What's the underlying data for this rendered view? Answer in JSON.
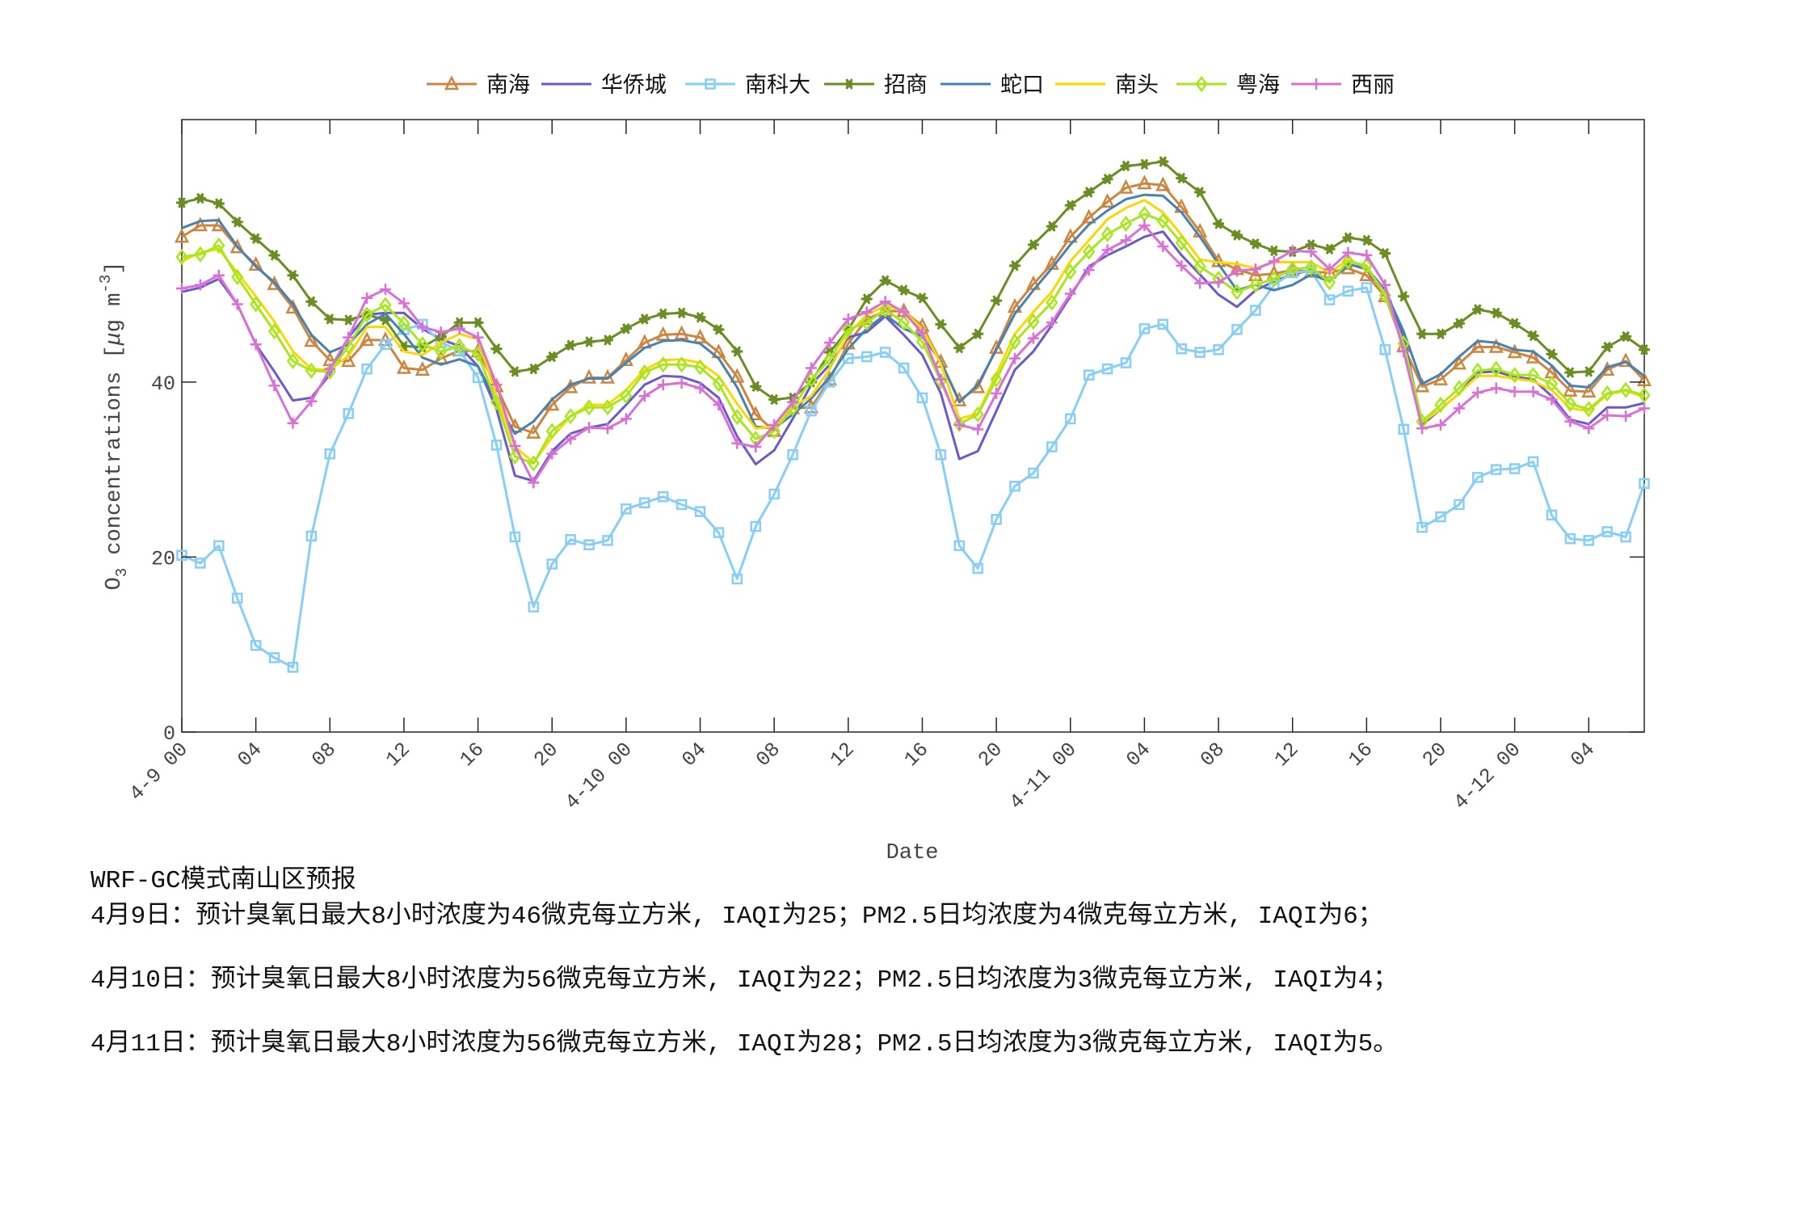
{
  "chart_data": {
    "type": "line",
    "xlabel": "Date",
    "ylabel": {
      "base": "O",
      "sub": "3",
      "mid": " concentrations [",
      "mu": "μ",
      "unit": "g m",
      "sup": "-3",
      "end": "]"
    },
    "ylim": [
      0,
      70
    ],
    "yticks": [
      0,
      20,
      40
    ],
    "ytick_labels": [
      "0",
      "20",
      "40"
    ],
    "xlim_hours": [
      0,
      79
    ],
    "xtick_hours": [
      0,
      4,
      8,
      12,
      16,
      20,
      24,
      28,
      32,
      36,
      40,
      44,
      48,
      52,
      56,
      60,
      64,
      68,
      72,
      76
    ],
    "xtick_labels": [
      "4-9 00",
      "04",
      "08",
      "12",
      "16",
      "20",
      "4-10 00",
      "04",
      "08",
      "12",
      "16",
      "20",
      "4-11 00",
      "04",
      "08",
      "12",
      "16",
      "20",
      "4-12 00",
      "04"
    ],
    "x_start": "4-9 00",
    "x_step": "1 hour",
    "grid": false,
    "legend_position": "top",
    "series": [
      {
        "name": "南海",
        "color": "#CD853F",
        "marker": "triangle",
        "values": [
          56.6,
          57.9,
          57.9,
          55.4,
          53.4,
          51.2,
          48.5,
          44.7,
          42.5,
          42.4,
          44.8,
          44.8,
          41.6,
          41.4,
          42.7,
          43.6,
          43.5,
          39.5,
          34.9,
          34.2,
          37.4,
          39.4,
          40.5,
          40.5,
          42.5,
          44.5,
          45.4,
          45.5,
          45.1,
          43.4,
          40.6,
          36.3,
          34.4,
          37.0,
          37.1,
          40.3,
          44.4,
          47.2,
          48.1,
          48.1,
          46.4,
          42.3,
          37.9,
          39.4,
          43.9,
          48.6,
          51.2,
          53.5,
          56.6,
          58.8,
          60.6,
          62.2,
          62.7,
          62.5,
          60.0,
          57.2,
          53.8,
          52.9,
          52.2,
          52.4,
          52.8,
          52.6,
          52.5,
          53.0,
          52.2,
          49.8,
          44.1,
          39.5,
          40.3,
          42.1,
          44.0,
          44.0,
          43.4,
          42.8,
          41.1,
          39.0,
          38.9,
          41.4,
          42.4,
          40.2
        ]
      },
      {
        "name": "华侨城",
        "color": "#6A5ACD",
        "marker": "none",
        "values": [
          50.3,
          50.8,
          51.8,
          48.9,
          44.3,
          41.2,
          37.9,
          38.2,
          40.9,
          45.1,
          47.7,
          47.9,
          47.9,
          46.1,
          44.9,
          44.1,
          41.8,
          36.9,
          29.3,
          28.7,
          32.1,
          34.1,
          34.8,
          35.2,
          37.4,
          39.7,
          40.7,
          40.6,
          39.9,
          38.2,
          33.8,
          30.6,
          32.2,
          35.8,
          39.7,
          42.0,
          45.1,
          45.7,
          47.5,
          45.4,
          43.1,
          38.7,
          31.2,
          32.1,
          36.7,
          41.4,
          43.5,
          46.5,
          49.8,
          53.2,
          54.5,
          55.5,
          56.6,
          57.2,
          54.5,
          52.3,
          50.0,
          48.6,
          50.5,
          51.5,
          52.3,
          52.8,
          51.5,
          53.5,
          52.9,
          50.1,
          45.2,
          35.1,
          36.9,
          38.7,
          41.1,
          41.2,
          40.6,
          40.3,
          38.4,
          35.7,
          35.2,
          37.1,
          37.1,
          37.6
        ]
      },
      {
        "name": "南科大",
        "color": "#87CEFA",
        "marker": "square",
        "values": [
          20.2,
          19.3,
          21.3,
          15.3,
          9.9,
          8.5,
          7.4,
          22.4,
          31.8,
          36.4,
          41.5,
          44.3,
          46.0,
          46.6,
          44.5,
          43.6,
          40.5,
          32.8,
          22.3,
          14.3,
          19.2,
          22.0,
          21.4,
          21.9,
          25.5,
          26.2,
          26.9,
          26.0,
          25.2,
          22.8,
          17.5,
          23.5,
          27.2,
          31.7,
          36.7,
          40.0,
          42.7,
          42.9,
          43.4,
          41.6,
          38.2,
          31.7,
          21.3,
          18.7,
          24.3,
          28.1,
          29.6,
          32.6,
          35.8,
          40.8,
          41.5,
          42.2,
          46.1,
          46.6,
          43.8,
          43.4,
          43.7,
          46.0,
          48.2,
          51.1,
          52.5,
          52.7,
          49.4,
          50.4,
          50.8,
          43.7,
          34.6,
          23.4,
          24.6,
          26.0,
          29.1,
          30.0,
          30.1,
          30.9,
          24.8,
          22.1,
          21.9,
          22.9,
          22.3,
          28.4
        ]
      },
      {
        "name": "招商",
        "color": "#6B8E23",
        "marker": "hexagram",
        "values": [
          60.5,
          61.0,
          60.4,
          58.3,
          56.4,
          54.5,
          52.2,
          49.2,
          47.2,
          47.1,
          47.7,
          47.1,
          44.1,
          44.0,
          45.2,
          46.8,
          46.8,
          43.8,
          41.2,
          41.5,
          42.9,
          44.2,
          44.6,
          44.8,
          46.1,
          47.2,
          47.8,
          47.9,
          47.4,
          46.0,
          43.5,
          39.5,
          38.0,
          38.2,
          40.0,
          43.4,
          46.0,
          49.5,
          51.6,
          50.5,
          49.6,
          46.6,
          43.9,
          45.5,
          49.3,
          53.3,
          55.7,
          57.8,
          60.2,
          61.7,
          63.2,
          64.7,
          64.9,
          65.2,
          63.3,
          61.7,
          58.1,
          56.8,
          55.8,
          55.0,
          54.9,
          55.7,
          55.2,
          56.5,
          56.2,
          54.7,
          49.8,
          45.5,
          45.5,
          46.7,
          48.3,
          47.9,
          46.7,
          45.3,
          43.2,
          41.1,
          41.2,
          44.0,
          45.2,
          43.7
        ]
      },
      {
        "name": "蛇口",
        "color": "#4682B4",
        "marker": "none",
        "values": [
          57.6,
          58.4,
          58.5,
          55.5,
          53.2,
          51.4,
          48.9,
          45.4,
          43.4,
          44.3,
          46.6,
          47.8,
          45.5,
          42.8,
          42.0,
          42.6,
          41.8,
          37.8,
          34.1,
          35.5,
          38.0,
          39.7,
          40.4,
          40.4,
          42.2,
          43.9,
          44.7,
          44.8,
          44.4,
          42.7,
          39.4,
          34.9,
          34.7,
          36.3,
          38.1,
          40.6,
          43.8,
          46.1,
          47.7,
          46.1,
          45.2,
          42.4,
          37.7,
          39.7,
          43.7,
          47.8,
          50.5,
          53.0,
          55.7,
          58.0,
          59.6,
          60.9,
          61.4,
          61.3,
          59.4,
          56.6,
          53.5,
          50.5,
          51.1,
          50.5,
          51.1,
          52.3,
          51.5,
          53.4,
          53.1,
          50.5,
          45.8,
          39.8,
          40.9,
          42.9,
          44.7,
          44.5,
          43.7,
          43.5,
          41.9,
          39.6,
          39.4,
          41.7,
          42.3,
          40.7
        ]
      },
      {
        "name": "南头",
        "color": "#FFD700",
        "marker": "none",
        "values": [
          53.8,
          54.8,
          55.2,
          52.5,
          49.8,
          46.9,
          43.5,
          41.5,
          41.4,
          43.0,
          46.3,
          46.3,
          43.5,
          43.1,
          44.5,
          45.5,
          44.9,
          38.4,
          32.6,
          30.8,
          33.7,
          36.1,
          37.4,
          37.4,
          39.1,
          41.4,
          42.5,
          42.6,
          42.2,
          40.7,
          37.5,
          34.7,
          34.9,
          37.2,
          38.4,
          41.5,
          45.5,
          47.7,
          48.7,
          48.1,
          46.1,
          42.1,
          35.8,
          36.4,
          40.9,
          45.5,
          48.0,
          50.3,
          53.8,
          56.2,
          58.6,
          59.9,
          60.8,
          59.4,
          56.8,
          54.0,
          53.7,
          53.5,
          53.0,
          53.7,
          53.7,
          53.7,
          52.5,
          54.0,
          53.1,
          50.1,
          44.3,
          35.4,
          36.9,
          38.7,
          40.7,
          40.7,
          40.4,
          40.1,
          39.1,
          37.0,
          36.7,
          38.6,
          39.0,
          38.3
        ]
      },
      {
        "name": "粤海",
        "color": "#A8E61D",
        "marker": "diamond",
        "values": [
          54.3,
          54.6,
          55.6,
          52.0,
          48.9,
          45.8,
          42.4,
          41.3,
          41.2,
          44.1,
          47.7,
          48.8,
          46.7,
          44.3,
          43.5,
          44.1,
          43.2,
          37.7,
          31.5,
          30.7,
          34.4,
          36.1,
          37.1,
          37.1,
          38.4,
          41.1,
          42.0,
          42.0,
          41.7,
          39.8,
          36.0,
          33.5,
          34.4,
          37.0,
          40.3,
          42.6,
          46.0,
          46.8,
          48.3,
          46.8,
          44.6,
          40.1,
          35.2,
          36.3,
          40.3,
          44.6,
          46.9,
          49.1,
          52.6,
          54.9,
          56.9,
          58.1,
          59.2,
          58.4,
          55.9,
          53.2,
          51.8,
          50.3,
          51.1,
          51.8,
          52.9,
          53.1,
          51.4,
          53.8,
          53.3,
          49.9,
          44.4,
          35.5,
          37.4,
          39.3,
          41.3,
          41.5,
          40.8,
          40.8,
          39.8,
          37.5,
          36.9,
          38.7,
          39.1,
          38.5
        ]
      },
      {
        "name": "西丽",
        "color": "#DA70D6",
        "marker": "plus",
        "values": [
          50.7,
          51.1,
          52.2,
          48.9,
          44.3,
          39.6,
          35.3,
          37.8,
          41.5,
          45.1,
          49.6,
          50.6,
          49.0,
          46.3,
          45.7,
          46.1,
          45.1,
          39.7,
          32.7,
          28.5,
          31.8,
          33.5,
          34.8,
          34.7,
          35.8,
          38.4,
          39.7,
          39.9,
          39.3,
          37.4,
          33.0,
          32.6,
          35.1,
          37.7,
          41.6,
          44.5,
          47.2,
          48.0,
          49.2,
          48.0,
          45.6,
          40.3,
          35.1,
          34.6,
          38.7,
          42.7,
          45.0,
          46.8,
          50.1,
          52.8,
          55.1,
          56.2,
          57.9,
          55.5,
          53.3,
          51.3,
          51.4,
          52.7,
          52.9,
          53.8,
          55.0,
          54.9,
          52.9,
          54.8,
          54.5,
          51.1,
          43.5,
          34.7,
          35.1,
          37.0,
          38.8,
          39.3,
          38.9,
          38.9,
          38.0,
          35.5,
          34.7,
          36.2,
          36.1,
          37.0
        ]
      }
    ]
  },
  "report": {
    "title": "WRF-GC模式南山区预报",
    "lines": [
      "4月9日：预计臭氧日最大8小时浓度为46微克每立方米, IAQI为25；PM2.5日均浓度为4微克每立方米, IAQI为6；",
      "4月10日：预计臭氧日最大8小时浓度为56微克每立方米, IAQI为22；PM2.5日均浓度为3微克每立方米, IAQI为4；",
      "4月11日：预计臭氧日最大8小时浓度为56微克每立方米, IAQI为28；PM2.5日均浓度为3微克每立方米, IAQI为5。"
    ]
  }
}
